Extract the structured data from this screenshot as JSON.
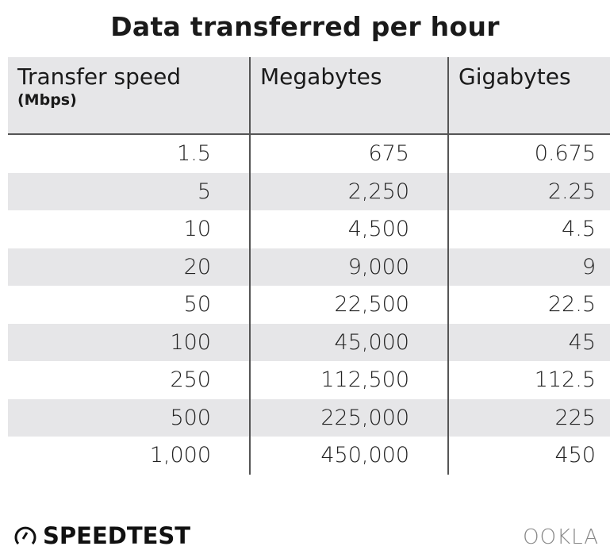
{
  "title": "Data transferred per hour",
  "chart_data": {
    "type": "table",
    "title": "Data transferred per hour",
    "columns": [
      {
        "label": "Transfer speed",
        "sublabel": "(Mbps)"
      },
      {
        "label": "Megabytes"
      },
      {
        "label": "Gigabytes"
      }
    ],
    "rows": [
      [
        "1.5",
        "675",
        "0.675"
      ],
      [
        "5",
        "2,250",
        "2.25"
      ],
      [
        "10",
        "4,500",
        "4.5"
      ],
      [
        "20",
        "9,000",
        "9"
      ],
      [
        "50",
        "22,500",
        "22.5"
      ],
      [
        "100",
        "45,000",
        "45"
      ],
      [
        "250",
        "112,500",
        "112.5"
      ],
      [
        "500",
        "225,000",
        "225"
      ],
      [
        "1,000",
        "450,000",
        "450"
      ]
    ]
  },
  "footer": {
    "brand": "SPEEDTEST",
    "partner": "OOKLA",
    "icon": "speedometer-icon"
  },
  "colors": {
    "header_bg": "#e6e6e8",
    "stripe": "#e6e6e8",
    "rule": "#555555"
  }
}
